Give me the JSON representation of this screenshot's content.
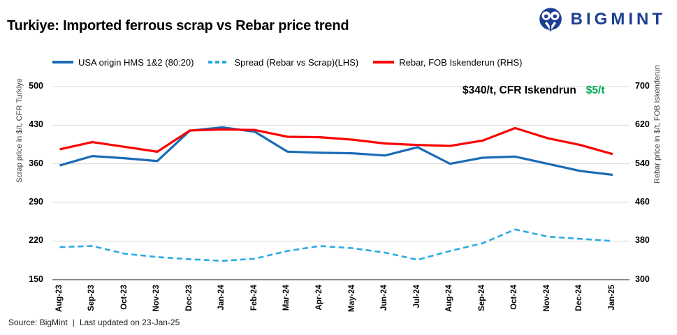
{
  "header": {
    "title": "Turkiye: Imported ferrous scrap vs Rebar price trend",
    "brand": "BIGMINT"
  },
  "legend": {
    "items": [
      {
        "label": "USA origin HMS 1&2 (80:20)",
        "color": "#1a6cb5",
        "style": "solid"
      },
      {
        "label": "Spread (Rebar vs Scrap)(LHS)",
        "color": "#29abe2",
        "style": "dashed"
      },
      {
        "label": "Rebar, FOB Iskenderun (RHS)",
        "color": "#fa0000",
        "style": "solid"
      }
    ]
  },
  "annotation": {
    "price": "$340/t, CFR Iskendrun",
    "change": "$5/t",
    "change_color": "#00a651"
  },
  "chart_data": {
    "type": "line",
    "categories": [
      "Aug-23",
      "Sep-23",
      "Oct-23",
      "Nov-23",
      "Dec-23",
      "Jan-24",
      "Feb-24",
      "Mar-24",
      "Apr-24",
      "May-24",
      "Jun-24",
      "Jul-24",
      "Aug-24",
      "Sep-24",
      "Oct-24",
      "Nov-24",
      "Dec-24",
      "Jan-25"
    ],
    "series": [
      {
        "name": "USA origin HMS 1&2 (80:20)",
        "axis": "left",
        "color": "#1a6cb5",
        "dash": false,
        "values": [
          357,
          374,
          370,
          365,
          420,
          426,
          418,
          382,
          380,
          379,
          375,
          390,
          360,
          371,
          373,
          360,
          347,
          340
        ]
      },
      {
        "name": "Spread (Rebar vs Scrap)(LHS)",
        "axis": "left",
        "color": "#29abe2",
        "dash": true,
        "values": [
          209,
          211,
          197,
          191,
          187,
          184,
          188,
          202,
          211,
          207,
          199,
          186,
          202,
          216,
          241,
          228,
          224,
          220
        ]
      },
      {
        "name": "Rebar, FOB Iskenderun (RHS)",
        "axis": "right",
        "color": "#fa0000",
        "dash": false,
        "values": [
          570,
          585,
          575,
          565,
          609,
          611,
          610,
          596,
          595,
          590,
          582,
          579,
          577,
          588,
          614,
          593,
          579,
          560
        ]
      }
    ],
    "left_axis": {
      "label": "Scrap price in  $/t, CFR Turkiye",
      "min": 150,
      "max": 500,
      "ticks": [
        500,
        430,
        360,
        290,
        220,
        150
      ]
    },
    "right_axis": {
      "label": "Rebar price  in $/t, FOB Iskenderun",
      "min": 300,
      "max": 700,
      "ticks": [
        700,
        620,
        540,
        460,
        380,
        300
      ]
    },
    "grid": true,
    "legend_position": "top"
  },
  "footer": {
    "source": "Source: BigMint",
    "separator": "|",
    "updated": "Last updated on 23-Jan-25"
  },
  "colors": {
    "brand_navy": "#1c3e94",
    "grid": "#d9d9d9",
    "axis_line": "#7f7f7f",
    "green": "#00a651"
  }
}
